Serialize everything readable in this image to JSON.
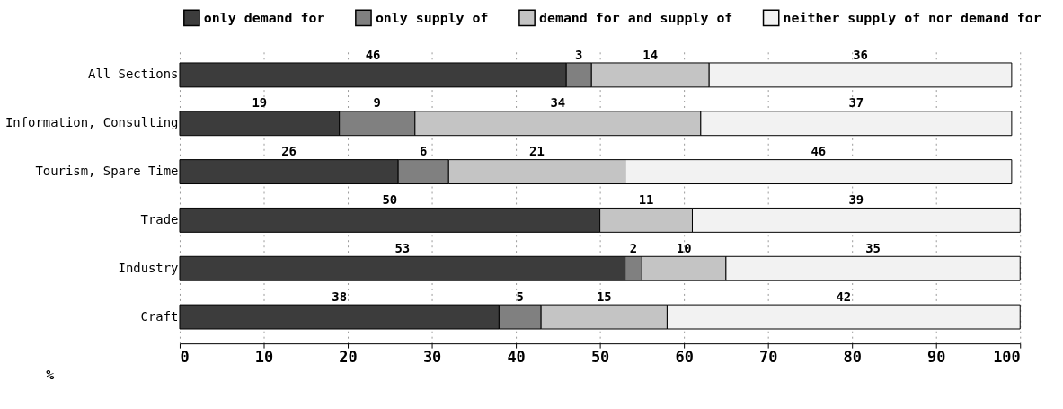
{
  "chart_data": {
    "type": "bar",
    "orientation": "horizontal",
    "stacked": true,
    "data_labels": true,
    "legend": "top",
    "grid": "x",
    "xlabel": "%",
    "categories": [
      "All Sections",
      "Information, Consulting",
      "Tourism, Spare Time",
      "Trade",
      "Industry",
      "Craft"
    ],
    "series": [
      {
        "name": "only demand for",
        "color": "#3c3c3c",
        "values": [
          46,
          19,
          26,
          50,
          53,
          38
        ]
      },
      {
        "name": "only supply of",
        "color": "#808080",
        "values": [
          3,
          9,
          6,
          null,
          2,
          5
        ]
      },
      {
        "name": "demand for and supply of",
        "color": "#c4c4c4",
        "values": [
          14,
          34,
          21,
          11,
          10,
          15
        ]
      },
      {
        "name": "neither supply of nor demand for",
        "color": "#f2f2f2",
        "values": [
          36,
          37,
          46,
          39,
          35,
          42
        ]
      }
    ],
    "xlim": [
      0,
      100
    ],
    "xticks": [
      0,
      10,
      20,
      30,
      40,
      50,
      60,
      70,
      80,
      90,
      100
    ]
  }
}
